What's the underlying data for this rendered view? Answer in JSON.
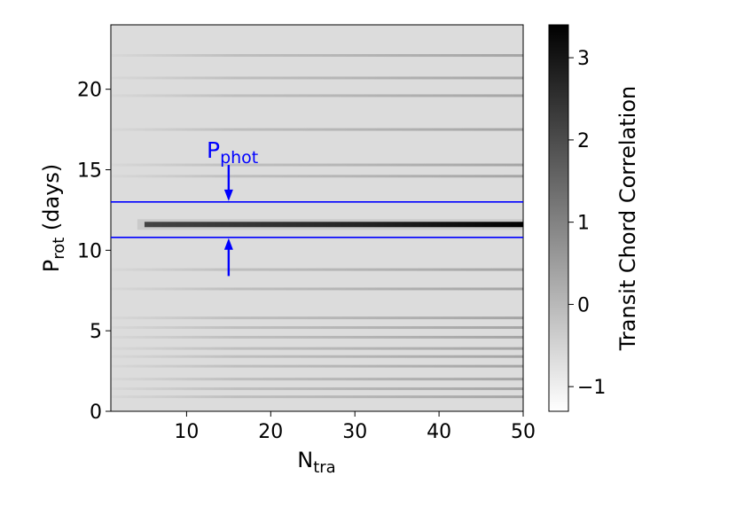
{
  "chart_data": {
    "type": "heatmap",
    "x_label_main": "N",
    "x_label_sub": "tra",
    "y_label_main": "P",
    "y_label_sub": "rot",
    "y_label_unit": " (days)",
    "xlim": [
      1,
      50
    ],
    "ylim": [
      0,
      24
    ],
    "x_ticks": [
      10,
      20,
      30,
      40,
      50
    ],
    "y_ticks": [
      0,
      5,
      10,
      15,
      20
    ],
    "colorbar": {
      "label": "Transit Chord Correlation",
      "range": [
        -1.3,
        3.4
      ],
      "ticks": [
        -1,
        0,
        1,
        2,
        3
      ],
      "colormap": "Greys"
    },
    "features": {
      "peak_period_days": 11.6,
      "peak_start_ntra": 5,
      "horizontal_bands_days": [
        0.9,
        1.4,
        2.0,
        2.8,
        3.4,
        3.9,
        4.6,
        5.2,
        5.8,
        7.6,
        8.8,
        14.6,
        15.3,
        17.5,
        19.6,
        20.7,
        22.1
      ]
    },
    "annotation": {
      "label_main": "P",
      "label_sub": "phot",
      "color": "#0000ff",
      "band_lower_days": 10.8,
      "band_upper_days": 13.0,
      "arrow_ntra": 15,
      "arrow_down_from_days": 15.3,
      "arrow_up_from_days": 8.4
    }
  }
}
